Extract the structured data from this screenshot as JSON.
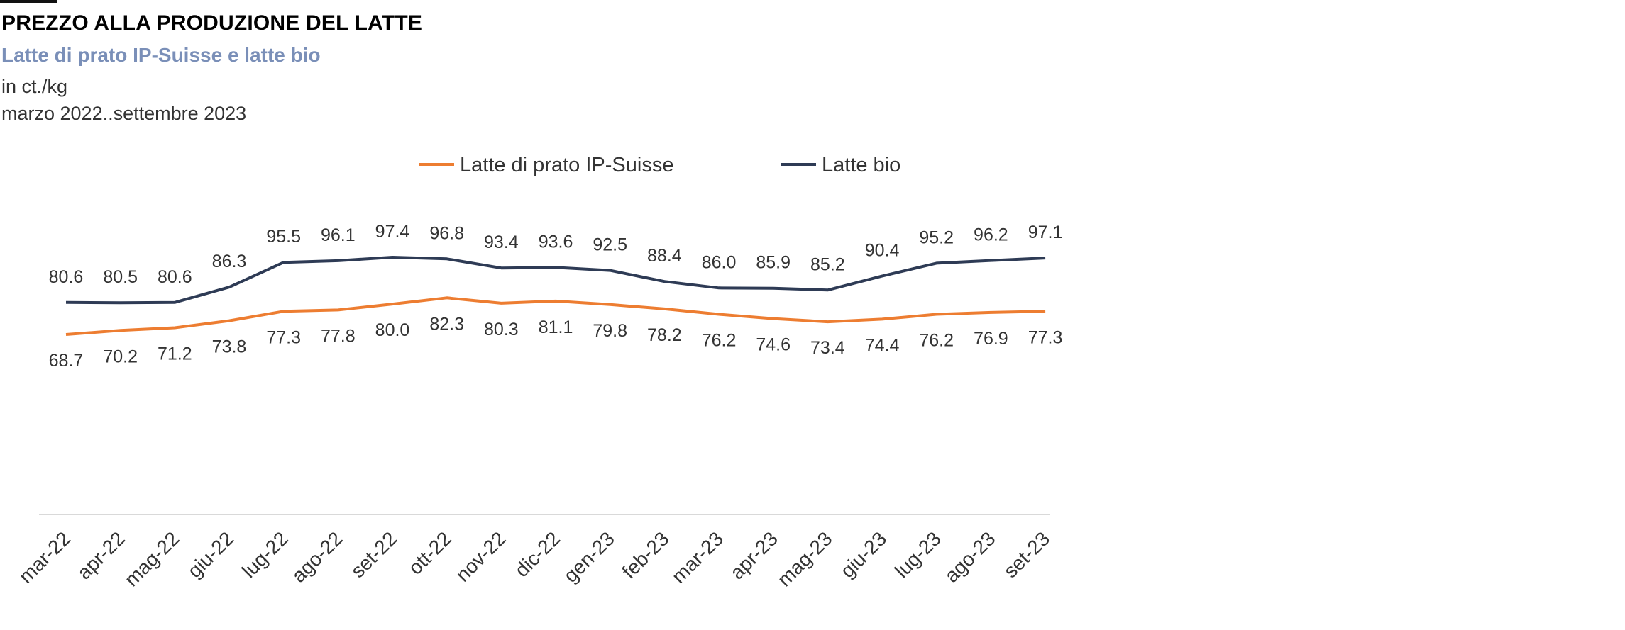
{
  "header": {
    "title": "PREZZO ALLA PRODUZIONE DEL LATTE",
    "subtitle": "Latte di prato IP-Suisse e latte bio",
    "unit": "in ct./kg",
    "period": "marzo 2022..settembre 2023"
  },
  "chart_data": {
    "type": "line",
    "title": "PREZZO ALLA PRODUZIONE DEL LATTE",
    "subtitle": "Latte di prato IP-Suisse e latte bio",
    "ylabel": "in ct./kg",
    "xlabel": "",
    "categories": [
      "mar-22",
      "apr-22",
      "mag-22",
      "giu-22",
      "lug-22",
      "ago-22",
      "set-22",
      "ott-22",
      "nov-22",
      "dic-22",
      "gen-23",
      "feb-23",
      "mar-23",
      "apr-23",
      "mag-23",
      "giu-23",
      "lug-23",
      "ago-23",
      "set-23"
    ],
    "series": [
      {
        "name": "Latte di prato IP-Suisse",
        "color": "#ED7D31",
        "labels_position": "below",
        "values": [
          68.7,
          70.2,
          71.2,
          73.8,
          77.3,
          77.8,
          80.0,
          82.3,
          80.3,
          81.1,
          79.8,
          78.2,
          76.2,
          74.6,
          73.4,
          74.4,
          76.2,
          76.9,
          77.3
        ],
        "value_labels": [
          "68.7",
          "70.2",
          "71.2",
          "73.8",
          "77.3",
          "77.8",
          "80.0",
          "82.3",
          "80.3",
          "81.1",
          "79.8",
          "78.2",
          "76.2",
          "74.6",
          "73.4",
          "74.4",
          "76.2",
          "76.9",
          "77.3"
        ]
      },
      {
        "name": "Latte bio",
        "color": "#2E3B55",
        "labels_position": "above",
        "values": [
          80.6,
          80.5,
          80.6,
          86.3,
          95.5,
          96.1,
          97.4,
          96.8,
          93.4,
          93.6,
          92.5,
          88.4,
          86.0,
          85.9,
          85.2,
          90.4,
          95.2,
          96.2,
          97.1
        ],
        "value_labels": [
          "80.6",
          "80.5",
          "80.6",
          "86.3",
          "95.5",
          "96.1",
          "97.4",
          "96.8",
          "93.4",
          "93.6",
          "92.5",
          "88.4",
          "86.0",
          "85.9",
          "85.2",
          "90.4",
          "95.2",
          "96.2",
          "97.1"
        ]
      }
    ],
    "ylim": [
      0,
      140
    ],
    "grid": false,
    "legend": "top"
  }
}
